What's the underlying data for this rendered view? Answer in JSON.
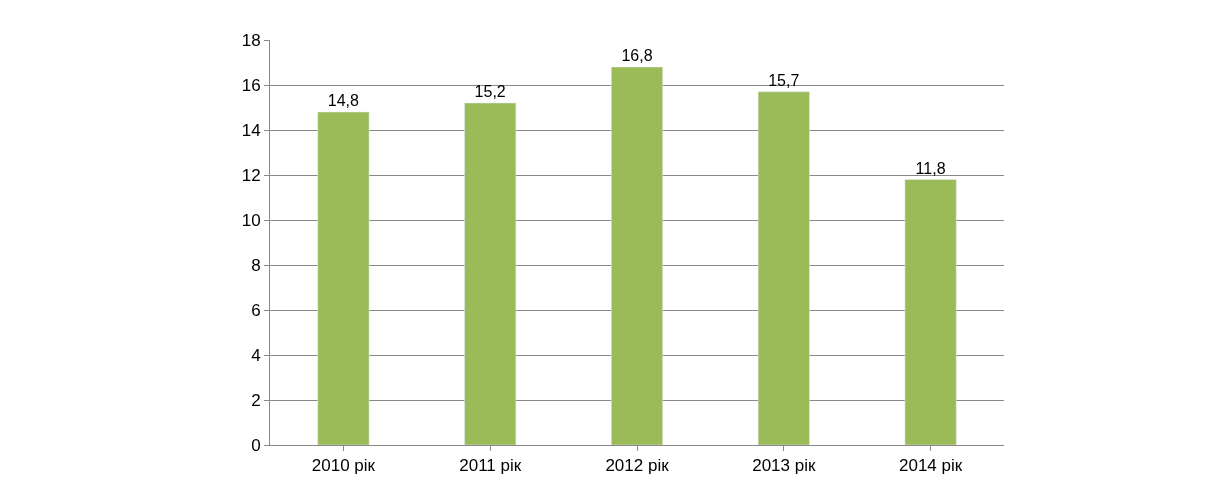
{
  "chart_data": {
    "type": "bar",
    "categories": [
      "2010 рік",
      "2011 рік",
      "2012 рік",
      "2013 рік",
      "2014 рік"
    ],
    "values": [
      14.8,
      15.2,
      16.8,
      15.7,
      11.8
    ],
    "value_labels": [
      "14,8",
      "15,2",
      "16,8",
      "15,7",
      "11,8"
    ],
    "color": "#9bbb59",
    "ylim": [
      0,
      18
    ],
    "yticks": [
      0,
      2,
      4,
      6,
      8,
      10,
      12,
      14,
      16,
      18
    ],
    "grid": "y"
  }
}
